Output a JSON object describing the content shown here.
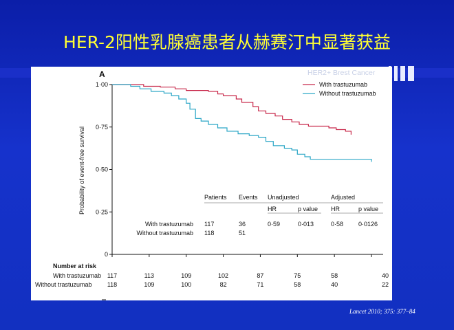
{
  "slide": {
    "title": "HER-2阳性乳腺癌患者从赫赛汀中显著获益",
    "watermark": "HER2+ Brest Cancer",
    "citation": "Lancet 2010; 375: 377–84"
  },
  "colors": {
    "with": "#c8284a",
    "without": "#2aa6c6",
    "title": "#ffff33"
  },
  "chart_data": {
    "type": "line",
    "panel_label": "A",
    "ylabel": "Probability of event-free survival",
    "ylim": [
      0,
      1.0
    ],
    "yticks": [
      {
        "value": 0,
        "label": "0"
      },
      {
        "value": 0.25,
        "label": "0·25"
      },
      {
        "value": 0.5,
        "label": "0·50"
      },
      {
        "value": 0.75,
        "label": "0·75"
      },
      {
        "value": 1.0,
        "label": "1·00"
      }
    ],
    "xlim": [
      0,
      7
    ],
    "legend_position": "top-right",
    "series": [
      {
        "name": "With trastuzumab",
        "color": "#c8284a",
        "points": [
          [
            0,
            1.0
          ],
          [
            0.6,
            1.0
          ],
          [
            0.85,
            0.99
          ],
          [
            1.3,
            0.985
          ],
          [
            1.7,
            0.975
          ],
          [
            2.0,
            0.965
          ],
          [
            2.6,
            0.96
          ],
          [
            2.85,
            0.945
          ],
          [
            3.0,
            0.935
          ],
          [
            3.35,
            0.915
          ],
          [
            3.5,
            0.895
          ],
          [
            3.8,
            0.87
          ],
          [
            3.95,
            0.845
          ],
          [
            4.15,
            0.83
          ],
          [
            4.4,
            0.815
          ],
          [
            4.6,
            0.795
          ],
          [
            4.85,
            0.78
          ],
          [
            5.05,
            0.765
          ],
          [
            5.3,
            0.755
          ],
          [
            5.85,
            0.745
          ],
          [
            6.05,
            0.735
          ],
          [
            6.3,
            0.725
          ],
          [
            6.45,
            0.705
          ]
        ]
      },
      {
        "name": "Without trastuzumab",
        "color": "#2aa6c6",
        "points": [
          [
            0,
            1.0
          ],
          [
            0.35,
            1.0
          ],
          [
            0.5,
            0.99
          ],
          [
            0.75,
            0.975
          ],
          [
            1.05,
            0.96
          ],
          [
            1.4,
            0.95
          ],
          [
            1.6,
            0.935
          ],
          [
            1.8,
            0.915
          ],
          [
            2.0,
            0.89
          ],
          [
            2.1,
            0.855
          ],
          [
            2.25,
            0.8
          ],
          [
            2.4,
            0.785
          ],
          [
            2.6,
            0.765
          ],
          [
            2.85,
            0.745
          ],
          [
            3.1,
            0.725
          ],
          [
            3.4,
            0.71
          ],
          [
            3.7,
            0.7
          ],
          [
            3.95,
            0.69
          ],
          [
            4.15,
            0.665
          ],
          [
            4.35,
            0.64
          ],
          [
            4.65,
            0.625
          ],
          [
            4.85,
            0.615
          ],
          [
            5.0,
            0.59
          ],
          [
            5.2,
            0.575
          ],
          [
            5.35,
            0.56
          ],
          [
            5.6,
            0.56
          ],
          [
            6.0,
            0.56
          ],
          [
            6.95,
            0.56
          ],
          [
            7.0,
            0.545
          ]
        ]
      }
    ],
    "summary_table": {
      "headers": [
        "Patients",
        "Events",
        "Unadjusted",
        "Adjusted"
      ],
      "subheaders": [
        "HR",
        "p value",
        "HR",
        "p value"
      ],
      "rows": [
        {
          "label": "With trastuzumab",
          "patients": "117",
          "events": "36",
          "hr_u": "0·59",
          "p_u": "0·013",
          "hr_a": "0·58",
          "p_a": "0·0126"
        },
        {
          "label": "Without trastuzumab",
          "patients": "118",
          "events": "51",
          "hr_u": "",
          "p_u": "",
          "hr_a": "",
          "p_a": ""
        }
      ]
    },
    "risk_table": {
      "title": "Number at risk",
      "rows": [
        {
          "label": "With trastuzumab",
          "values": [
            "117",
            "113",
            "109",
            "102",
            "87",
            "75",
            "58",
            "40"
          ]
        },
        {
          "label": "Without trastuzumab",
          "values": [
            "118",
            "109",
            "100",
            "82",
            "71",
            "58",
            "40",
            "22"
          ]
        }
      ]
    }
  }
}
